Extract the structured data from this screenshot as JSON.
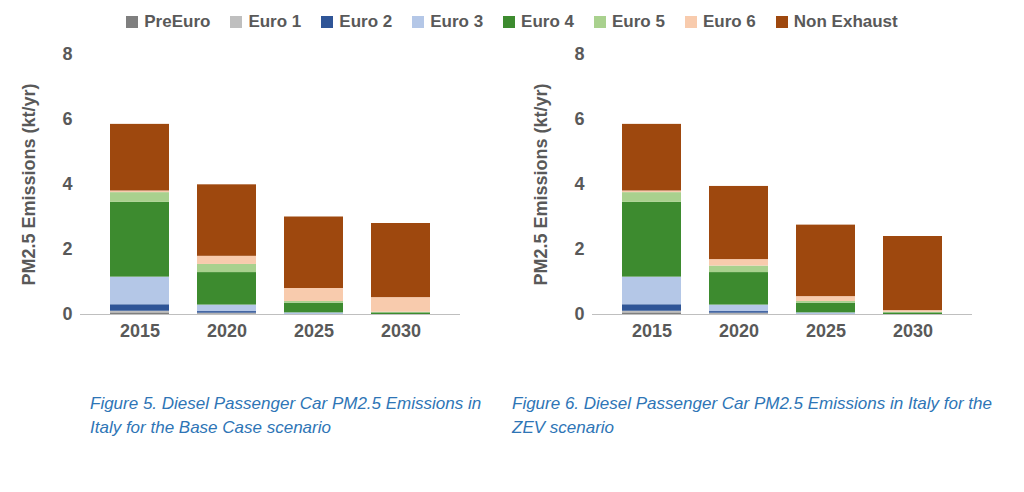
{
  "chart_data": [
    {
      "type": "bar",
      "stacked": true,
      "title": "Figure 5. Diesel Passenger Car PM2.5 Emissions in Italy for the Base Case scenario",
      "ylabel": "PM2.5 Emissions (kt/yr)",
      "categories": [
        "2015",
        "2020",
        "2025",
        "2030"
      ],
      "ylim": [
        0,
        8
      ],
      "yticks": [
        0,
        2,
        4,
        6,
        8
      ],
      "grid": false,
      "legend": "top",
      "series": [
        {
          "name": "PreEuro",
          "color": "#7f7f7f",
          "values": [
            0.05,
            0.02,
            0,
            0
          ]
        },
        {
          "name": "Euro 1",
          "color": "#bfbfbf",
          "values": [
            0.05,
            0.02,
            0,
            0
          ]
        },
        {
          "name": "Euro 2",
          "color": "#2f5597",
          "values": [
            0.2,
            0.05,
            0,
            0
          ]
        },
        {
          "name": "Euro 3",
          "color": "#b4c7e7",
          "values": [
            0.85,
            0.2,
            0.05,
            0
          ]
        },
        {
          "name": "Euro 4",
          "color": "#3d8b2f",
          "values": [
            2.3,
            1.0,
            0.3,
            0.05
          ]
        },
        {
          "name": "Euro 5",
          "color": "#a9d18e",
          "values": [
            0.3,
            0.25,
            0.05,
            0.02
          ]
        },
        {
          "name": "Euro 6",
          "color": "#f8cbad",
          "values": [
            0.05,
            0.25,
            0.4,
            0.45
          ]
        },
        {
          "name": "Non Exhaust",
          "color": "#9e480e",
          "values": [
            2.05,
            2.2,
            2.2,
            2.28
          ]
        }
      ]
    },
    {
      "type": "bar",
      "stacked": true,
      "title": "Figure 6. Diesel Passenger Car PM2.5 Emissions in Italy for the ZEV scenario",
      "ylabel": "PM2.5 Emissions (kt/yr)",
      "categories": [
        "2015",
        "2020",
        "2025",
        "2030"
      ],
      "ylim": [
        0,
        8
      ],
      "yticks": [
        0,
        2,
        4,
        6,
        8
      ],
      "grid": false,
      "legend": "top",
      "series": [
        {
          "name": "PreEuro",
          "color": "#7f7f7f",
          "values": [
            0.05,
            0.02,
            0,
            0
          ]
        },
        {
          "name": "Euro 1",
          "color": "#bfbfbf",
          "values": [
            0.05,
            0.02,
            0,
            0
          ]
        },
        {
          "name": "Euro 2",
          "color": "#2f5597",
          "values": [
            0.2,
            0.05,
            0,
            0
          ]
        },
        {
          "name": "Euro 3",
          "color": "#b4c7e7",
          "values": [
            0.85,
            0.2,
            0.05,
            0
          ]
        },
        {
          "name": "Euro 4",
          "color": "#3d8b2f",
          "values": [
            2.3,
            1.0,
            0.3,
            0.05
          ]
        },
        {
          "name": "Euro 5",
          "color": "#a9d18e",
          "values": [
            0.3,
            0.2,
            0.05,
            0.02
          ]
        },
        {
          "name": "Euro 6",
          "color": "#f8cbad",
          "values": [
            0.05,
            0.2,
            0.15,
            0.05
          ]
        },
        {
          "name": "Non Exhaust",
          "color": "#9e480e",
          "values": [
            2.05,
            2.25,
            2.2,
            2.28
          ]
        }
      ]
    }
  ]
}
